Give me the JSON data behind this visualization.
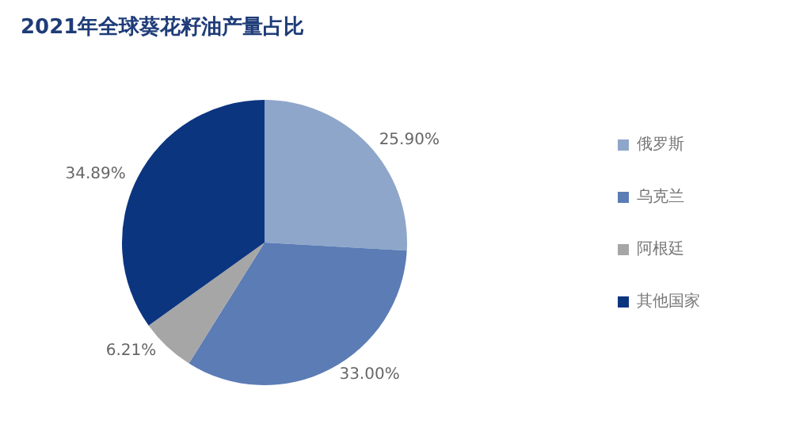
{
  "chart_data": {
    "type": "pie",
    "title": "2021年全球葵花籽油产量占比",
    "categories": [
      "俄罗斯",
      "乌克兰",
      "阿根廷",
      "其他国家"
    ],
    "values": [
      25.9,
      33.0,
      6.21,
      34.89
    ],
    "value_labels": [
      "25.90%",
      "33.00%",
      "6.21%",
      "34.89%"
    ],
    "colors": [
      "#8ea6c9",
      "#5b7cb5",
      "#a6a6a6",
      "#0c3580"
    ],
    "legend": "right"
  }
}
